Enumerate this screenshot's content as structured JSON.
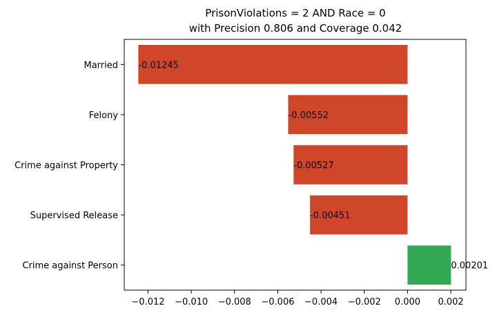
{
  "chart_data": {
    "type": "bar",
    "orientation": "horizontal",
    "title_line1": "PrisonViolations = 2 AND Race = 0",
    "title_line2": "with Precision 0.806 and Coverage 0.042",
    "xlabel": "",
    "ylabel": "",
    "xlim": [
      -0.0131,
      0.0027
    ],
    "grid": false,
    "categories": [
      "Married",
      "Felony",
      "Crime against Property",
      "Supervised Release",
      "Crime against Person"
    ],
    "values": [
      -0.01245,
      -0.00552,
      -0.00527,
      -0.00451,
      0.00201
    ],
    "value_labels": [
      "-0.01245",
      "-0.00552",
      "-0.00527",
      "-0.00451",
      "0.00201"
    ],
    "x_ticks": [
      -0.012,
      -0.01,
      -0.008,
      -0.006,
      -0.004,
      -0.002,
      0.0,
      0.002
    ],
    "x_tick_labels": [
      "−0.012",
      "−0.010",
      "−0.008",
      "−0.006",
      "−0.004",
      "−0.002",
      "0.000",
      "0.002"
    ],
    "colors": {
      "negative": "#d0462a",
      "positive": "#33a852"
    }
  }
}
